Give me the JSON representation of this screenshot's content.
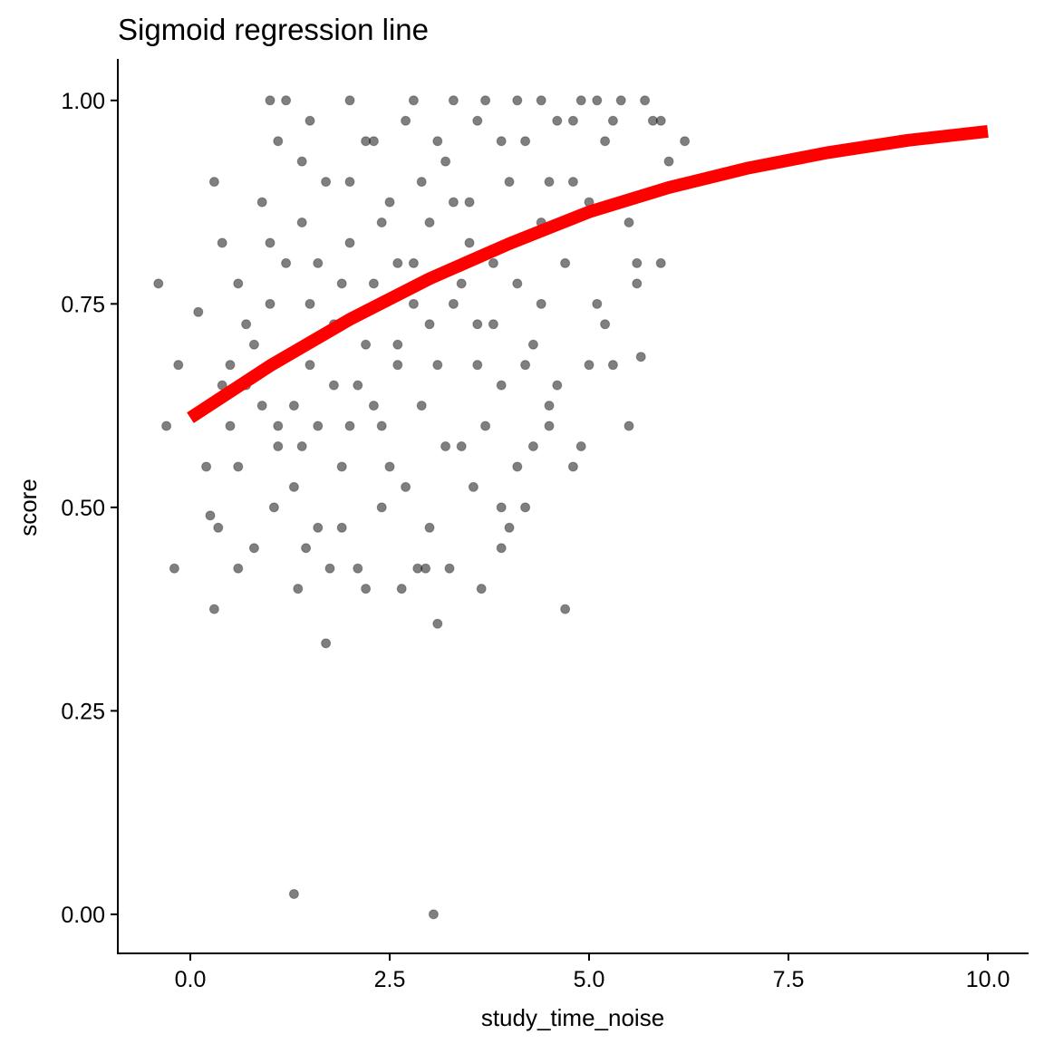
{
  "chart_data": {
    "type": "scatter",
    "title": "Sigmoid regression line",
    "x_label": "study_time_noise",
    "y_label": "score",
    "x": [
      1.3,
      3.05,
      1.7,
      3.1,
      0.3,
      4.7,
      -0.4,
      -0.3,
      -0.2,
      -0.15,
      6.2,
      5.9,
      5.5,
      5.65,
      1.35,
      2.2,
      2.65,
      3.65,
      3.9,
      4.0,
      4.2,
      2.95,
      0.5,
      0.6,
      0.7,
      0.8,
      0.9,
      1.0,
      1.1,
      1.2,
      1.3,
      1.4,
      1.5,
      1.6,
      1.7,
      1.8,
      1.9,
      2.0,
      2.1,
      2.2,
      2.3,
      2.4,
      2.5,
      2.6,
      2.7,
      2.8,
      2.9,
      3.0,
      3.1,
      3.2,
      3.3,
      3.4,
      3.5,
      3.6,
      3.7,
      3.8,
      3.9,
      4.0,
      4.1,
      4.2,
      4.3,
      4.4,
      4.5,
      4.6,
      4.7,
      4.8,
      4.9,
      5.0,
      5.1,
      5.2,
      5.3,
      5.4,
      5.6,
      5.8,
      6.0,
      1.0,
      1.2,
      1.5,
      2.0,
      2.3,
      2.8,
      3.3,
      3.6,
      4.1,
      4.4,
      4.8,
      5.1,
      5.7,
      0.3,
      0.4,
      0.6,
      0.2,
      0.25,
      0.35,
      0.6,
      0.8,
      1.05,
      1.45,
      1.6,
      1.75,
      1.9,
      2.1,
      2.4,
      2.7,
      2.85,
      3.0,
      3.25,
      3.55,
      3.9,
      4.1,
      4.3,
      4.5,
      4.8,
      4.9,
      5.0,
      5.3,
      5.6,
      5.2,
      4.6,
      4.2,
      3.8,
      3.4,
      3.0,
      2.6,
      2.2,
      1.8,
      1.4,
      1.1,
      0.7,
      0.5,
      1.3,
      2.0,
      2.5,
      3.2,
      3.7,
      4.4,
      4.7,
      5.5,
      5.9,
      3.5,
      2.9,
      2.4,
      1.6,
      1.0,
      0.9,
      1.4,
      3.9,
      4.5,
      3.1,
      2.0,
      1.1,
      2.6,
      3.3,
      4.0,
      3.6,
      2.8,
      2.3,
      1.9,
      1.5,
      0.4,
      0.1
    ],
    "y": [
      0.025,
      0.0,
      0.333,
      0.357,
      0.375,
      0.375,
      0.775,
      0.6,
      0.425,
      0.675,
      0.95,
      0.975,
      0.6,
      0.685,
      0.4,
      0.4,
      0.4,
      0.4,
      0.45,
      0.475,
      0.5,
      0.425,
      0.6,
      0.55,
      0.65,
      0.7,
      0.625,
      0.75,
      0.575,
      0.8,
      0.525,
      0.85,
      0.675,
      0.6,
      0.9,
      0.725,
      0.55,
      0.825,
      0.65,
      0.95,
      0.775,
      0.6,
      0.875,
      0.7,
      0.975,
      0.8,
      0.625,
      0.85,
      0.675,
      0.925,
      0.75,
      0.575,
      0.875,
      0.725,
      1.0,
      0.8,
      0.65,
      0.9,
      0.775,
      0.95,
      0.7,
      0.85,
      0.625,
      0.975,
      0.8,
      0.9,
      1.0,
      0.875,
      0.75,
      0.95,
      0.975,
      1.0,
      0.8,
      0.975,
      0.925,
      1.0,
      1.0,
      0.975,
      1.0,
      0.95,
      1.0,
      1.0,
      0.975,
      1.0,
      1.0,
      0.975,
      1.0,
      1.0,
      0.9,
      0.825,
      0.775,
      0.55,
      0.49,
      0.475,
      0.425,
      0.45,
      0.5,
      0.45,
      0.475,
      0.425,
      0.475,
      0.425,
      0.5,
      0.525,
      0.425,
      0.475,
      0.425,
      0.525,
      0.5,
      0.55,
      0.575,
      0.6,
      0.55,
      0.575,
      0.675,
      0.675,
      0.775,
      0.725,
      0.65,
      0.675,
      0.725,
      0.775,
      0.725,
      0.675,
      0.7,
      0.65,
      0.575,
      0.6,
      0.725,
      0.675,
      0.625,
      0.6,
      0.55,
      0.575,
      0.6,
      0.75,
      0.85,
      0.85,
      0.8,
      0.825,
      0.9,
      0.85,
      0.8,
      0.825,
      0.875,
      0.925,
      0.95,
      0.9,
      0.95,
      0.9,
      0.95,
      0.8,
      0.875,
      0.825,
      0.675,
      0.75,
      0.625,
      0.775,
      0.75,
      0.65,
      0.74
    ],
    "color": "#000000",
    "fit": {
      "type": "line",
      "x": [
        0,
        1,
        2,
        3,
        4,
        5,
        6,
        7,
        8,
        9,
        10
      ],
      "y": [
        0.61,
        0.674,
        0.731,
        0.781,
        0.824,
        0.863,
        0.893,
        0.917,
        0.936,
        0.951,
        0.962
      ],
      "color": "#ff0000"
    },
    "xlim": [
      -0.909,
      10.511
    ],
    "ylim": [
      -0.048,
      1.051
    ],
    "xticks": [
      {
        "value": 0,
        "label": "0.0"
      },
      2.5,
      {
        "value": 5,
        "label": "5.0"
      },
      7.5,
      {
        "value": 10,
        "label": "10.0"
      }
    ],
    "yticks": [
      {
        "value": 0,
        "label": "0.00"
      },
      {
        "value": 0.25,
        "label": "0.25"
      },
      {
        "value": 0.5,
        "label": "0.50"
      },
      {
        "value": 0.75,
        "label": "0.75"
      },
      {
        "value": 1,
        "label": "1.00"
      }
    ],
    "grid": false
  }
}
